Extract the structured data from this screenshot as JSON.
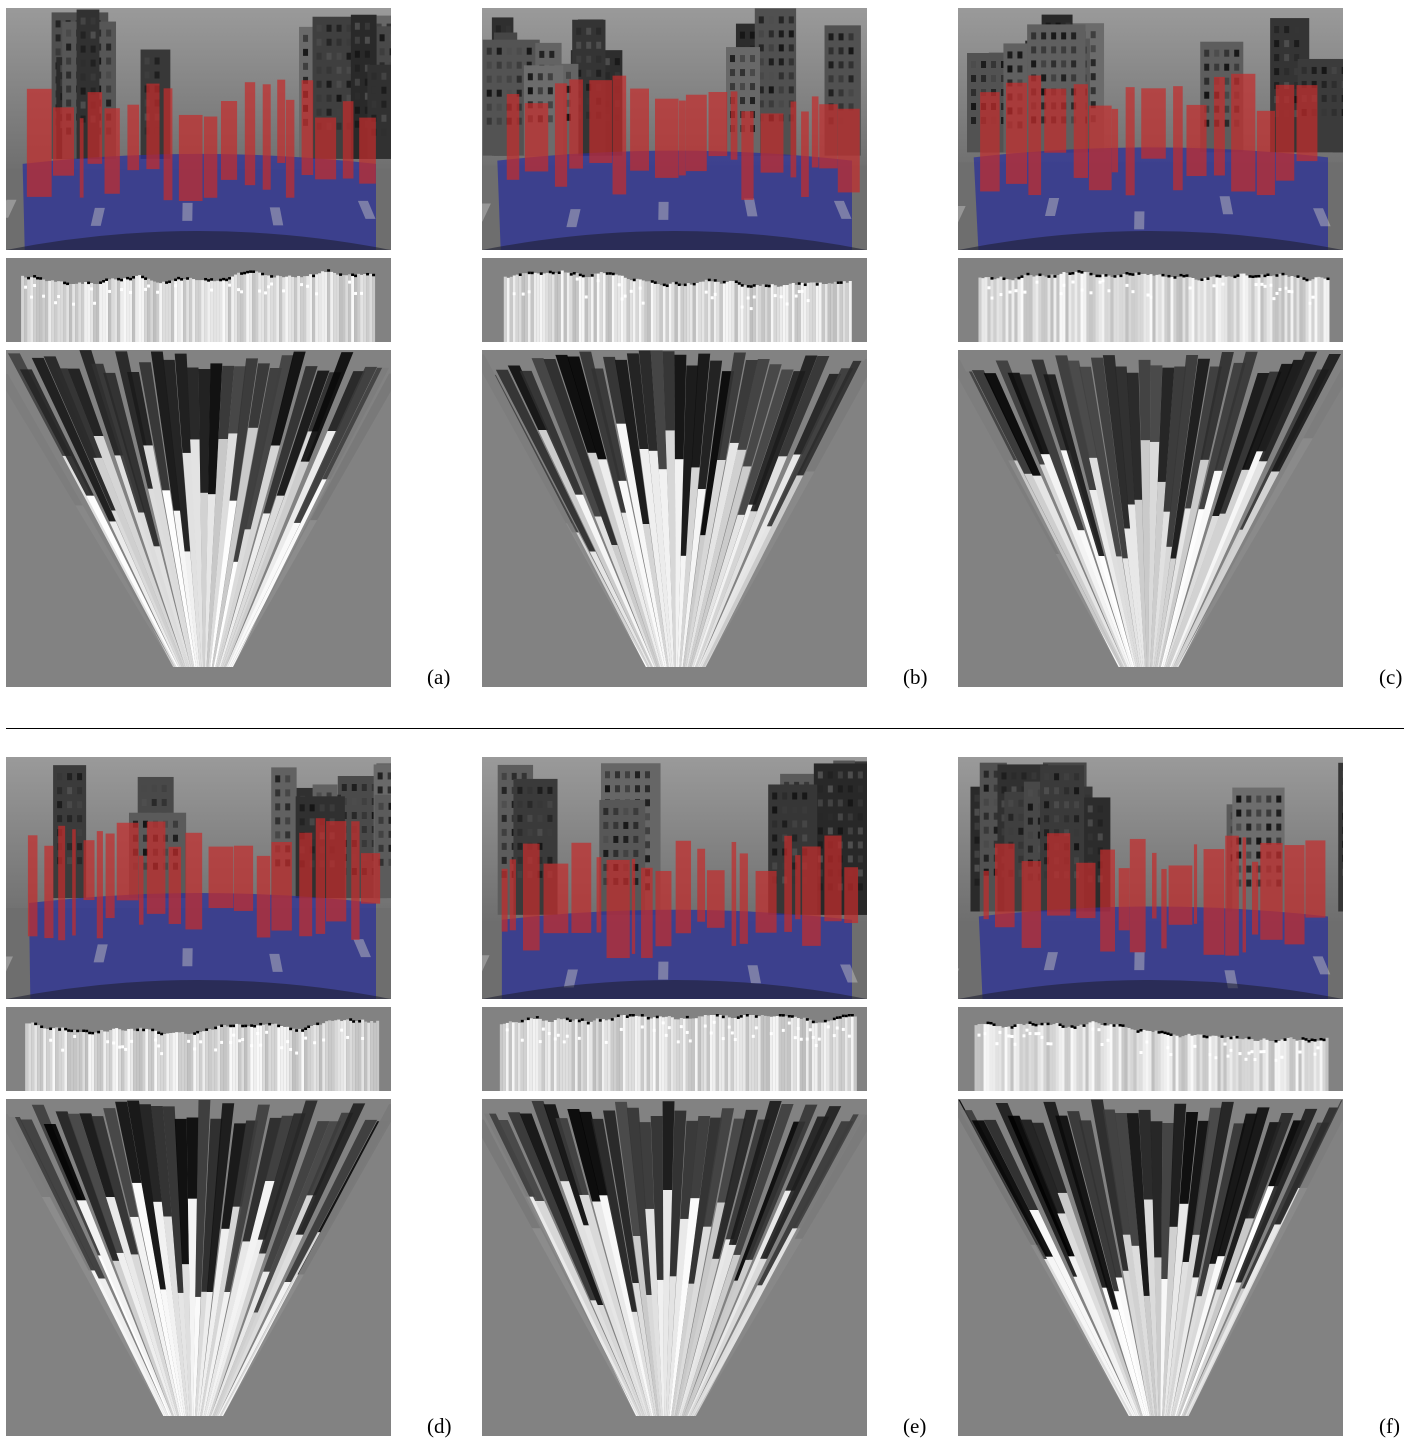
{
  "figure": {
    "panels": [
      {
        "id": "a",
        "caption": "(a)"
      },
      {
        "id": "b",
        "caption": "(b)"
      },
      {
        "id": "c",
        "caption": "(c)"
      },
      {
        "id": "d",
        "caption": "(d)"
      },
      {
        "id": "e",
        "caption": "(e)"
      },
      {
        "id": "f",
        "caption": "(f)"
      }
    ]
  },
  "colors": {
    "road_overlay": "#2a2f9a",
    "obstacle_overlay": "#c42c2c",
    "background_gray": "#828282"
  }
}
